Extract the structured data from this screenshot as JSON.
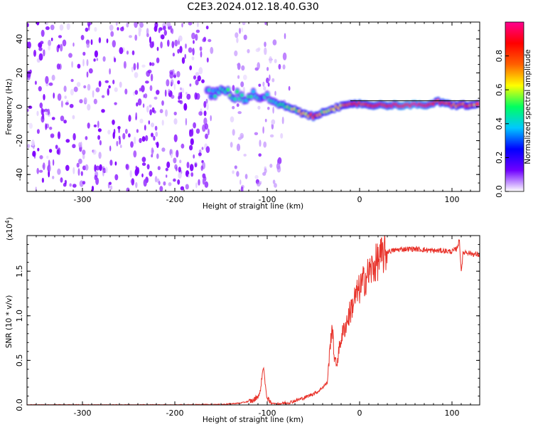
{
  "title": "C2E3.2024.012.18.40.G30",
  "chart_data": [
    {
      "type": "heatmap",
      "xlabel": "Height of straight line (km)",
      "ylabel": "Frequency (Hz)",
      "xlim": [
        -360,
        130
      ],
      "ylim": [
        -50,
        50
      ],
      "xticks": [
        -300,
        -200,
        -100,
        0,
        100
      ],
      "yticks": [
        -40,
        -20,
        0,
        20,
        40
      ],
      "colorbar": {
        "label": "Normalized spectral amplitude",
        "range": [
          0.0,
          1.0
        ],
        "ticks": [
          0.0,
          0.2,
          0.4,
          0.6,
          0.8
        ],
        "colors": [
          "#ffffff",
          "#7000ff",
          "#0000ff",
          "#00c8ff",
          "#00ff60",
          "#ffff00",
          "#ff6000",
          "#ff0000",
          "#ff0090"
        ]
      },
      "noise_regions_km": [
        [
          -360,
          -160
        ],
        [
          -140,
          -120
        ],
        [
          -112,
          -95
        ],
        [
          -95,
          -75
        ]
      ],
      "signal_track": {
        "x": [
          -165,
          -150,
          -140,
          -130,
          -120,
          -110,
          -105,
          -95,
          -85,
          -75,
          -65,
          -55,
          -50,
          -45,
          -40,
          -30,
          -20,
          -10,
          0,
          10,
          20,
          30,
          40,
          50,
          60,
          70,
          80,
          85,
          90,
          100,
          110,
          120,
          130
        ],
        "y": [
          7,
          9,
          8,
          6,
          6,
          7,
          6,
          3,
          1,
          -1,
          -3,
          -5,
          -6,
          -5,
          -3,
          -1,
          0,
          1,
          2,
          1,
          1,
          1,
          1,
          1,
          1,
          1,
          2,
          3,
          2,
          1,
          1,
          1,
          1
        ],
        "amplitude": [
          0.35,
          0.45,
          0.5,
          0.4,
          0.45,
          0.4,
          0.35,
          0.4,
          0.5,
          0.55,
          0.6,
          0.7,
          0.85,
          0.7,
          0.6,
          0.65,
          0.7,
          0.75,
          0.85,
          0.8,
          0.85,
          0.85,
          0.9,
          0.95,
          0.95,
          0.9,
          0.85,
          0.8,
          0.85,
          0.8,
          0.75,
          0.75,
          0.7
        ]
      }
    },
    {
      "type": "line",
      "xlabel": "Height of straight line (km)",
      "ylabel": "SNR (10 * v/v)",
      "scale_label": "(x10",
      "scale_exp": "4",
      "scale_close": ")",
      "xlim": [
        -360,
        130
      ],
      "ylim": [
        0.0,
        1.9
      ],
      "xticks": [
        -300,
        -200,
        -100,
        0,
        100
      ],
      "yticks": [
        "0.0",
        "0.5",
        "1.0",
        "1.5"
      ],
      "ytick_values": [
        0.0,
        0.5,
        1.0,
        1.5
      ],
      "series": [
        {
          "name": "SNR",
          "color": "#e8322a",
          "x": [
            -360,
            -300,
            -200,
            -150,
            -130,
            -115,
            -108,
            -104,
            -102,
            -100,
            -97,
            -90,
            -75,
            -60,
            -45,
            -35,
            -30,
            -27,
            -25,
            -20,
            -15,
            -10,
            -5,
            0,
            5,
            10,
            15,
            20,
            25,
            30,
            40,
            50,
            60,
            70,
            80,
            90,
            100,
            105,
            108,
            110,
            112,
            115,
            120,
            130
          ],
          "y": [
            0.0,
            0.0,
            0.0,
            0.005,
            0.02,
            0.05,
            0.12,
            0.45,
            0.2,
            0.08,
            0.03,
            0.01,
            0.03,
            0.08,
            0.15,
            0.25,
            0.9,
            0.5,
            0.45,
            0.75,
            0.9,
            1.05,
            1.2,
            1.3,
            1.4,
            1.48,
            1.55,
            1.62,
            1.68,
            1.72,
            1.74,
            1.75,
            1.75,
            1.74,
            1.73,
            1.73,
            1.72,
            1.75,
            1.85,
            1.5,
            1.7,
            1.72,
            1.7,
            1.68
          ]
        }
      ]
    }
  ]
}
